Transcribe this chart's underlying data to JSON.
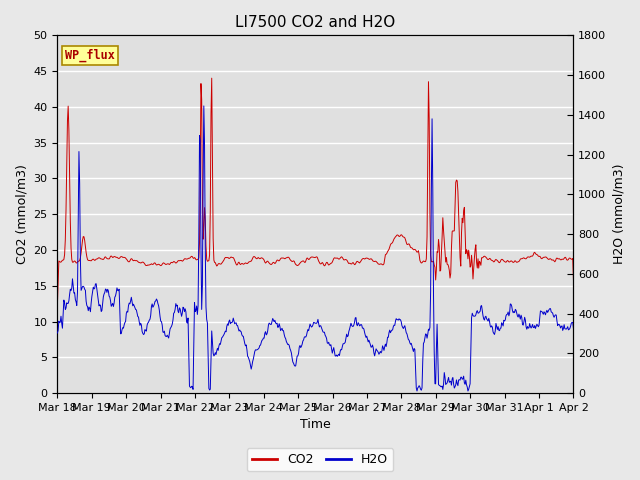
{
  "title": "LI7500 CO2 and H2O",
  "xlabel": "Time",
  "ylabel_left": "CO2 (mmol/m3)",
  "ylabel_right": "H2O (mmol/m3)",
  "ylim_left": [
    0,
    50
  ],
  "ylim_right": [
    0,
    1800
  ],
  "x_tick_labels": [
    "Mar 18",
    "Mar 19",
    "Mar 20",
    "Mar 21",
    "Mar 22",
    "Mar 23",
    "Mar 24",
    "Mar 25",
    "Mar 26",
    "Mar 27",
    "Mar 28",
    "Mar 29",
    "Mar 30",
    "Mar 31",
    "Apr 1",
    "Apr 2"
  ],
  "co2_color": "#cc0000",
  "h2o_color": "#0000cc",
  "fig_bg_color": "#e8e8e8",
  "plot_bg_color": "#e0e0e0",
  "annotation_text": "WP_flux",
  "annotation_bg": "#ffff99",
  "annotation_border": "#aa8800",
  "legend_co2": "CO2",
  "legend_h2o": "H2O",
  "title_fontsize": 11,
  "axis_fontsize": 9,
  "tick_fontsize": 8
}
